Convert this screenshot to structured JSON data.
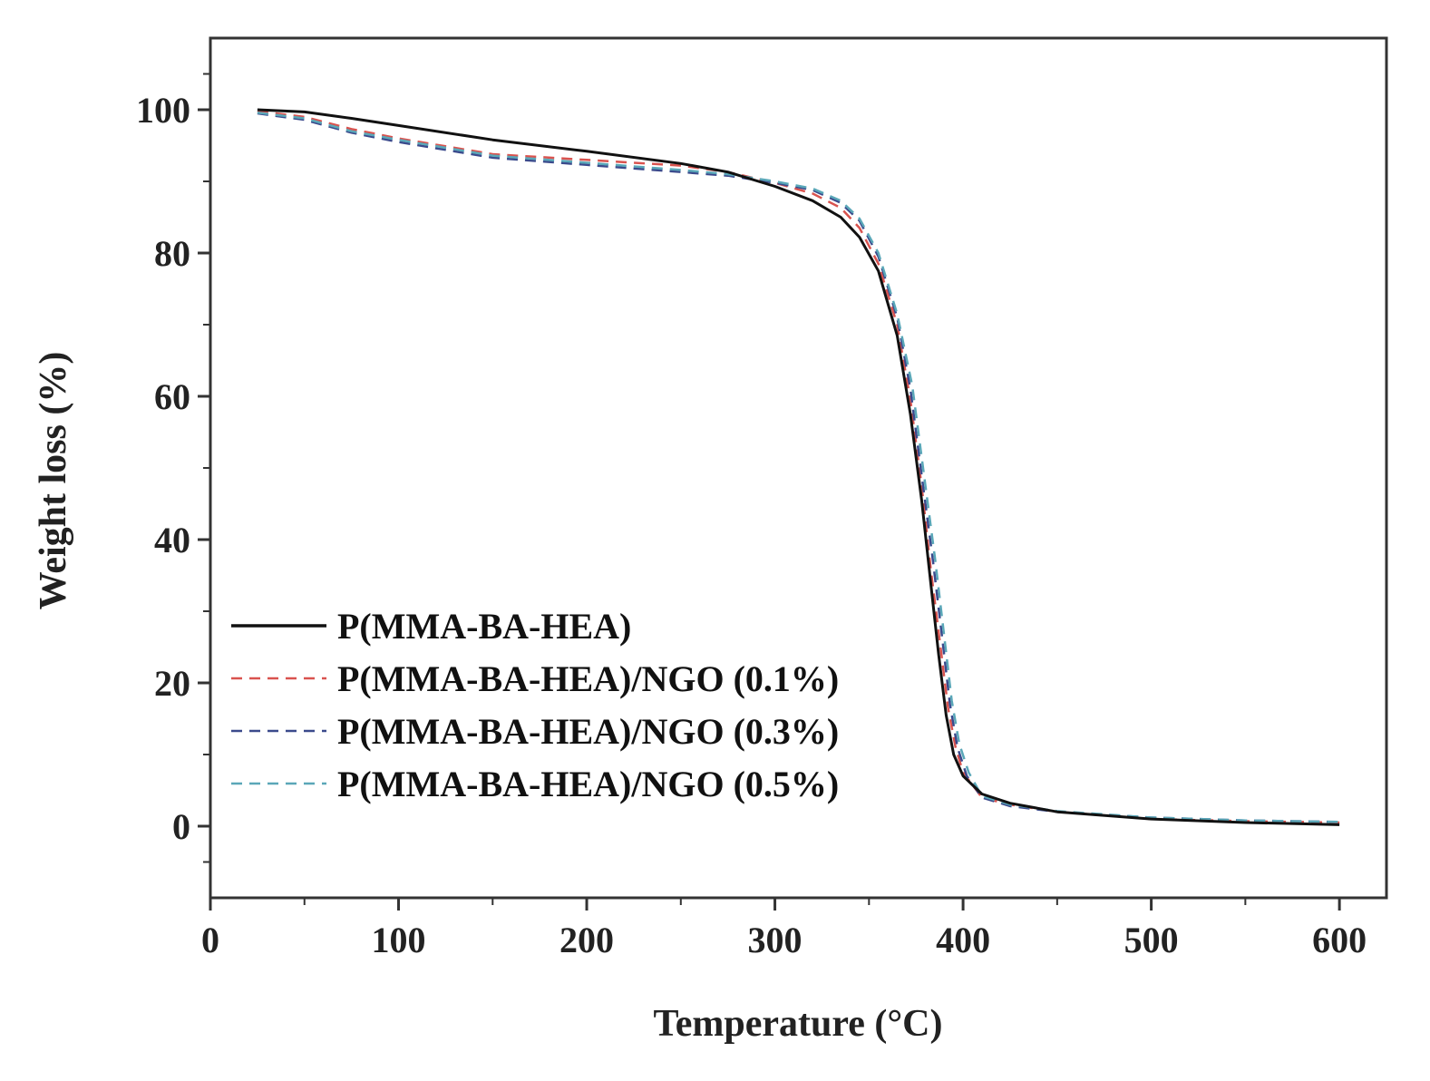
{
  "chart_data": {
    "type": "line",
    "xlabel": "Temperature (°C)",
    "ylabel": "Weight loss (%)",
    "xlim": [
      0,
      625
    ],
    "ylim": [
      -10,
      110
    ],
    "xticks": [
      0,
      100,
      200,
      300,
      400,
      500,
      600
    ],
    "yticks": [
      0,
      20,
      40,
      60,
      80,
      100
    ],
    "grid": false,
    "legend_position": "lower-left",
    "series": [
      {
        "name": "P(MMA-BA-HEA)",
        "color": "#111111",
        "style": "solid",
        "x": [
          25,
          50,
          75,
          100,
          150,
          200,
          250,
          275,
          300,
          320,
          335,
          345,
          355,
          365,
          372,
          378,
          383,
          387,
          391,
          395,
          400,
          410,
          425,
          450,
          500,
          550,
          600
        ],
        "y": [
          100,
          99.7,
          98.8,
          97.8,
          95.8,
          94.2,
          92.5,
          91.3,
          89.3,
          87.3,
          85.0,
          82.2,
          77.5,
          68.5,
          57.5,
          45.5,
          33.5,
          24.0,
          15.5,
          10.0,
          7.0,
          4.5,
          3.2,
          2.0,
          1.0,
          0.5,
          0.2
        ]
      },
      {
        "name": "P(MMA-BA-HEA)/NGO (0.1%)",
        "color": "#d9534f",
        "style": "dashed",
        "x": [
          25,
          50,
          75,
          100,
          150,
          200,
          250,
          275,
          300,
          320,
          335,
          345,
          355,
          365,
          372,
          378,
          383,
          388,
          392,
          396,
          400,
          410,
          425,
          450,
          500,
          550,
          600
        ],
        "y": [
          99.8,
          99.0,
          97.3,
          96.0,
          93.8,
          93.0,
          92.2,
          91.3,
          89.8,
          88.3,
          86.3,
          83.5,
          78.5,
          70.0,
          59.5,
          47.5,
          35.5,
          25.0,
          16.5,
          11.0,
          7.5,
          4.0,
          3.0,
          2.0,
          1.0,
          0.7,
          0.5
        ]
      },
      {
        "name": "P(MMA-BA-HEA)/NGO (0.3%)",
        "color": "#3b4a8c",
        "style": "dashed",
        "x": [
          25,
          50,
          75,
          100,
          150,
          200,
          250,
          275,
          300,
          320,
          335,
          345,
          355,
          365,
          372,
          378,
          384,
          389,
          393,
          397,
          402,
          410,
          425,
          450,
          500,
          550,
          600
        ],
        "y": [
          99.5,
          98.6,
          96.8,
          95.5,
          93.3,
          92.3,
          91.3,
          90.8,
          89.8,
          88.8,
          87.0,
          84.5,
          79.5,
          71.0,
          61.0,
          49.0,
          37.0,
          26.0,
          17.0,
          11.0,
          7.0,
          4.0,
          2.8,
          2.0,
          1.2,
          0.8,
          0.6
        ]
      },
      {
        "name": "P(MMA-BA-HEA)/NGO (0.5%)",
        "color": "#5aa7b8",
        "style": "dashed",
        "x": [
          25,
          50,
          75,
          100,
          150,
          200,
          250,
          275,
          300,
          320,
          335,
          345,
          355,
          365,
          373,
          379,
          385,
          390,
          394,
          398,
          403,
          410,
          425,
          450,
          500,
          550,
          600
        ],
        "y": [
          99.6,
          98.8,
          97.0,
          95.8,
          93.6,
          92.6,
          91.6,
          91.0,
          90.0,
          89.0,
          87.3,
          84.8,
          80.0,
          71.5,
          61.5,
          49.5,
          37.5,
          26.5,
          17.5,
          11.5,
          7.5,
          4.2,
          3.0,
          2.1,
          1.2,
          0.8,
          0.6
        ]
      }
    ]
  }
}
